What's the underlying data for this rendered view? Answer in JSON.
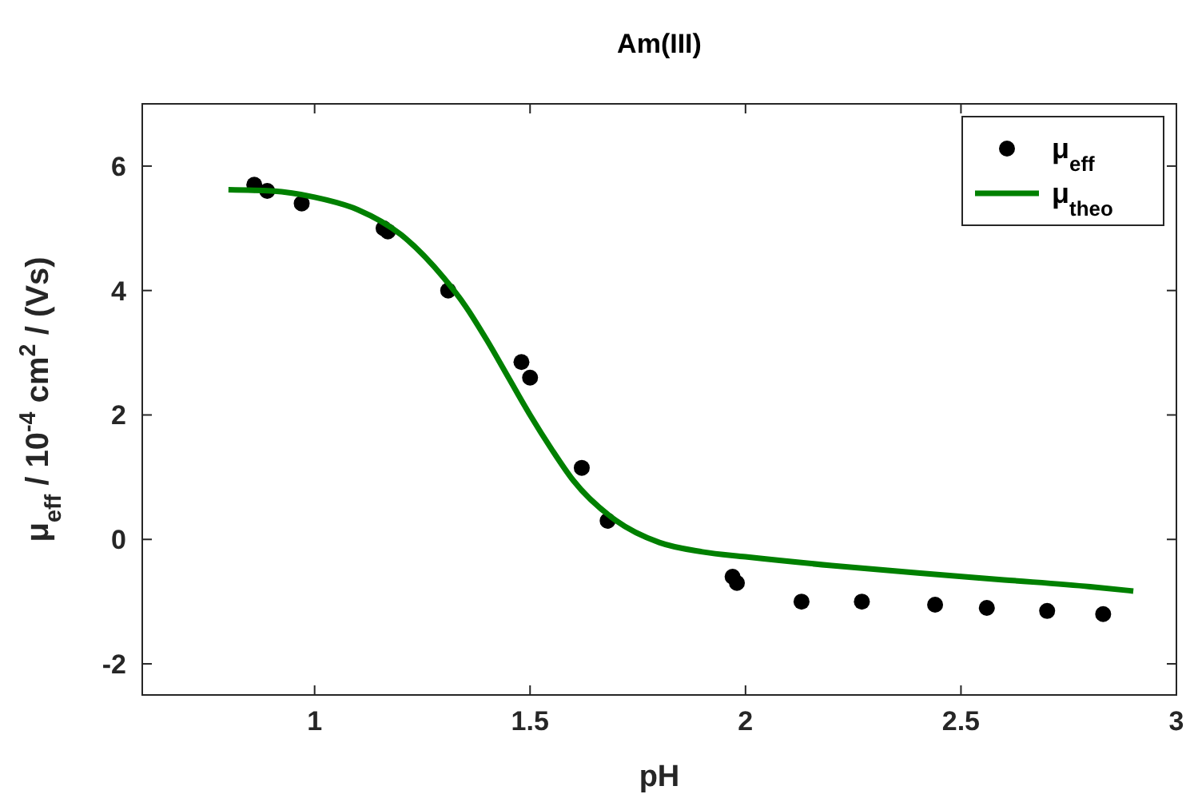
{
  "chart_data": {
    "type": "scatter",
    "title": "Am(III)",
    "xlabel": "pH",
    "ylabel": "μ$_{eff}$ / 10$^{-4}$ cm$^{2}$ / (Vs)",
    "xlim": [
      0.6,
      3
    ],
    "ylim": [
      -2.5,
      7
    ],
    "xticks": [
      1,
      1.5,
      2,
      2.5,
      3
    ],
    "yticks": [
      -2,
      0,
      2,
      4,
      6
    ],
    "grid": false,
    "legend": "top right",
    "series": [
      {
        "name": "μ$_{eff}$",
        "marker": "circle",
        "color": "#000000",
        "x": [
          0.86,
          0.89,
          0.97,
          1.16,
          1.17,
          1.31,
          1.48,
          1.5,
          1.62,
          1.68,
          1.97,
          1.98,
          2.13,
          2.27,
          2.44,
          2.56,
          2.7,
          2.83
        ],
        "values": [
          5.7,
          5.6,
          5.4,
          5.0,
          4.95,
          4.0,
          2.85,
          2.6,
          1.15,
          0.3,
          -0.6,
          -0.7,
          -1.0,
          -1.0,
          -1.05,
          -1.1,
          -1.15,
          -1.2
        ]
      },
      {
        "name": "μ$_{theo}$",
        "type": "line",
        "line_style": "solid",
        "color": "#008000",
        "x": [
          0.8,
          0.9,
          1.0,
          1.1,
          1.2,
          1.3,
          1.35,
          1.4,
          1.45,
          1.5,
          1.55,
          1.6,
          1.7,
          1.8,
          1.9,
          2.0,
          2.2,
          2.4,
          2.6,
          2.8,
          2.9
        ],
        "values": [
          5.62,
          5.6,
          5.5,
          5.3,
          4.9,
          4.2,
          3.75,
          3.2,
          2.6,
          2.0,
          1.45,
          0.95,
          0.3,
          -0.05,
          -0.2,
          -0.28,
          -0.42,
          -0.54,
          -0.65,
          -0.76,
          -0.83
        ]
      }
    ]
  }
}
